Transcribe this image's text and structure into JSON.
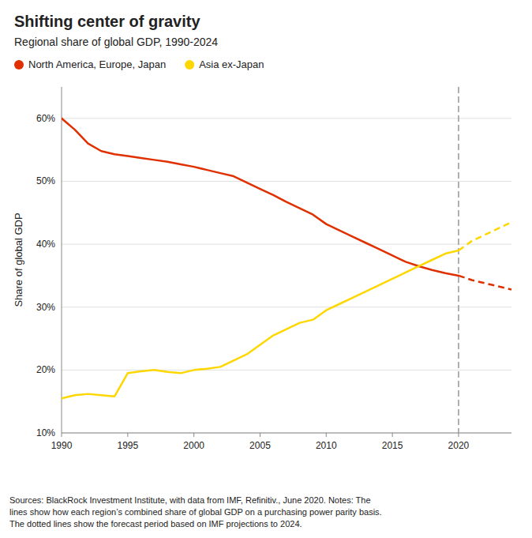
{
  "chart_data": {
    "type": "line",
    "title": "Shifting center of gravity",
    "subtitle": "Regional share of global GDP, 1990-2024",
    "footnote": "Sources: BlackRock Investment Institute, with data from IMF, Refinitiv., June 2020. Notes: The\nlines show how each region’s combined share of global GDP on a purchasing power parity basis.\nThe dotted lines show the forecast period based on IMF projections to 2024.",
    "ylabel": "Share of global GDP",
    "x": [
      1990,
      1991,
      1992,
      1993,
      1994,
      1995,
      1996,
      1997,
      1998,
      1999,
      2000,
      2001,
      2002,
      2003,
      2004,
      2005,
      2006,
      2007,
      2008,
      2009,
      2010,
      2011,
      2012,
      2013,
      2014,
      2015,
      2016,
      2017,
      2018,
      2019,
      2020,
      2021,
      2022,
      2023,
      2024
    ],
    "series": [
      {
        "name": "North America, Europe, Japan",
        "color": "#e03000",
        "line_style": "solid",
        "values": [
          60.0,
          58.2,
          56.0,
          54.8,
          54.3,
          54.0,
          53.7,
          53.4,
          53.1,
          52.7,
          52.3,
          51.8,
          51.3,
          50.8,
          49.8,
          48.8,
          47.8,
          46.7,
          45.7,
          44.7,
          43.2,
          42.2,
          41.2,
          40.2,
          39.2,
          38.2,
          37.2,
          36.5,
          35.9,
          35.4,
          35.0,
          null,
          null,
          null,
          null
        ]
      },
      {
        "color": "#e03000",
        "line_style": "dashed",
        "values": [
          null,
          null,
          null,
          null,
          null,
          null,
          null,
          null,
          null,
          null,
          null,
          null,
          null,
          null,
          null,
          null,
          null,
          null,
          null,
          null,
          null,
          null,
          null,
          null,
          null,
          null,
          null,
          null,
          null,
          null,
          35.0,
          34.3,
          33.8,
          33.3,
          32.8
        ]
      },
      {
        "name": "Asia ex-Japan",
        "color": "#ffd700",
        "line_style": "solid",
        "values": [
          15.5,
          16.0,
          16.2,
          16.0,
          15.8,
          19.5,
          19.8,
          20.0,
          19.7,
          19.5,
          20.0,
          20.2,
          20.5,
          21.5,
          22.5,
          24.0,
          25.5,
          26.5,
          27.5,
          28.0,
          29.5,
          30.5,
          31.5,
          32.5,
          33.5,
          34.5,
          35.5,
          36.5,
          37.5,
          38.5,
          39.0,
          null,
          null,
          null,
          null
        ]
      },
      {
        "color": "#ffd700",
        "line_style": "dashed",
        "values": [
          null,
          null,
          null,
          null,
          null,
          null,
          null,
          null,
          null,
          null,
          null,
          null,
          null,
          null,
          null,
          null,
          null,
          null,
          null,
          null,
          null,
          null,
          null,
          null,
          null,
          null,
          null,
          null,
          null,
          null,
          39.0,
          40.5,
          41.5,
          42.5,
          43.5
        ]
      }
    ],
    "vline_x": 2020,
    "xlim": [
      1990,
      2024
    ],
    "xticks": [
      1990,
      1995,
      2000,
      2005,
      2010,
      2015,
      2020
    ],
    "ylim": [
      10,
      65
    ],
    "yticks": [
      {
        "value": 10,
        "label": "10%"
      },
      {
        "value": 20,
        "label": "20%"
      },
      {
        "value": 30,
        "label": "30%"
      },
      {
        "value": 40,
        "label": "40%"
      },
      {
        "value": 50,
        "label": "50%"
      },
      {
        "value": 60,
        "label": "60%"
      }
    ],
    "grid": true,
    "legend": "top"
  }
}
